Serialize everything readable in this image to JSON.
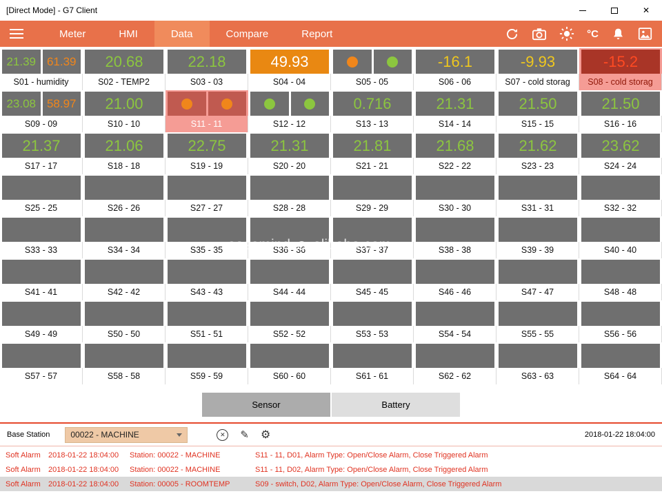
{
  "window": {
    "title": "[Direct Mode] - G7 Client",
    "controls": {
      "close_glyph": "✕"
    }
  },
  "nav": {
    "tabs": [
      {
        "label": "Meter",
        "active": false
      },
      {
        "label": "HMI",
        "active": false
      },
      {
        "label": "Data",
        "active": true
      },
      {
        "label": "Compare",
        "active": false
      },
      {
        "label": "Report",
        "active": false
      }
    ],
    "celsius": "°C",
    "icon_names": [
      "sync-icon",
      "camera-icon",
      "brightness-icon",
      "celsius-label",
      "alarm-bell-icon",
      "snapshot-icon"
    ]
  },
  "watermark": {
    "left": "easemind",
    "right": "alibaba.com"
  },
  "colors": {
    "navBg": "#E8714A",
    "navActive": "#F08B5C",
    "tileGray": "#6F6F6F",
    "green": "#8CC63F",
    "orange": "#F0861B",
    "yellow": "#EFC71E",
    "white": "#FFFFFF",
    "alarmValue": "#FF4A22",
    "orangeBox": "#E98812",
    "darkRedBox": "#A93527",
    "alarmCircleBox": "#C05A50",
    "alarmTileBg": "#F59C95",
    "accentRed": "#E5472B",
    "alarmText": "#E03322"
  },
  "grid": {
    "tiles": [
      {
        "label": "S01 - humidity",
        "type": "dual",
        "values": [
          "21.39",
          "61.39"
        ],
        "value_colors": [
          "green",
          "orange"
        ]
      },
      {
        "label": "S02 - TEMP2",
        "type": "single",
        "value": "20.68",
        "value_color": "green"
      },
      {
        "label": "S03 - 03",
        "type": "single",
        "value": "22.18",
        "value_color": "green"
      },
      {
        "label": "S04 - 04",
        "type": "single",
        "value": "49.93",
        "value_color": "white",
        "box_bg": "orangeBox"
      },
      {
        "label": "S05 - 05",
        "type": "circles",
        "circles": [
          "orange",
          "green"
        ]
      },
      {
        "label": "S06 - 06",
        "type": "single",
        "value": "-16.1",
        "value_color": "yellow"
      },
      {
        "label": "S07 - cold storag",
        "type": "single",
        "value": "-9.93",
        "value_color": "yellow"
      },
      {
        "label": "S08 - cold storag",
        "type": "single",
        "value": "-15.2",
        "value_color": "alarmValue",
        "box_bg": "darkRedBox",
        "alarm": true,
        "label_color": "#8F1607"
      },
      {
        "label": "S09 - 09",
        "type": "dual",
        "values": [
          "23.08",
          "58.97"
        ],
        "value_colors": [
          "green",
          "orange"
        ]
      },
      {
        "label": "S10 - 10",
        "type": "single",
        "value": "21.00",
        "value_color": "green"
      },
      {
        "label": "S11 - 11",
        "type": "circles",
        "circles": [
          "orange",
          "orange"
        ],
        "box_bg": "alarmCircleBox",
        "alarm": true,
        "label_color": "#FFFFFF"
      },
      {
        "label": "S12 - 12",
        "type": "circles",
        "circles": [
          "green",
          "green"
        ]
      },
      {
        "label": "S13 - 13",
        "type": "single",
        "value": "0.716",
        "value_color": "green"
      },
      {
        "label": "S14 - 14",
        "type": "single",
        "value": "21.31",
        "value_color": "green"
      },
      {
        "label": "S15 - 15",
        "type": "single",
        "value": "21.50",
        "value_color": "green"
      },
      {
        "label": "S16 - 16",
        "type": "single",
        "value": "21.50",
        "value_color": "green"
      },
      {
        "label": "S17 - 17",
        "type": "single",
        "value": "21.37",
        "value_color": "green"
      },
      {
        "label": "S18 - 18",
        "type": "single",
        "value": "21.06",
        "value_color": "green"
      },
      {
        "label": "S19 - 19",
        "type": "single",
        "value": "22.75",
        "value_color": "green"
      },
      {
        "label": "S20 - 20",
        "type": "single",
        "value": "21.31",
        "value_color": "green"
      },
      {
        "label": "S21 - 21",
        "type": "single",
        "value": "21.81",
        "value_color": "green"
      },
      {
        "label": "S22 - 22",
        "type": "single",
        "value": "21.68",
        "value_color": "green"
      },
      {
        "label": "S23 - 23",
        "type": "single",
        "value": "21.62",
        "value_color": "green"
      },
      {
        "label": "S24 - 24",
        "type": "single",
        "value": "23.62",
        "value_color": "green"
      },
      {
        "label": "S25 - 25",
        "type": "empty"
      },
      {
        "label": "S26 - 26",
        "type": "empty"
      },
      {
        "label": "S27 - 27",
        "type": "empty"
      },
      {
        "label": "S28 - 28",
        "type": "empty"
      },
      {
        "label": "S29 - 29",
        "type": "empty"
      },
      {
        "label": "S30 - 30",
        "type": "empty"
      },
      {
        "label": "S31 - 31",
        "type": "empty"
      },
      {
        "label": "S32 - 32",
        "type": "empty"
      },
      {
        "label": "S33 - 33",
        "type": "empty"
      },
      {
        "label": "S34 - 34",
        "type": "empty"
      },
      {
        "label": "S35 - 35",
        "type": "empty"
      },
      {
        "label": "S36 - 36",
        "type": "empty"
      },
      {
        "label": "S37 - 37",
        "type": "empty"
      },
      {
        "label": "S38 - 38",
        "type": "empty"
      },
      {
        "label": "S39 - 39",
        "type": "empty"
      },
      {
        "label": "S40 - 40",
        "type": "empty"
      },
      {
        "label": "S41 - 41",
        "type": "empty"
      },
      {
        "label": "S42 - 42",
        "type": "empty"
      },
      {
        "label": "S43 - 43",
        "type": "empty"
      },
      {
        "label": "S44 - 44",
        "type": "empty"
      },
      {
        "label": "S45 - 45",
        "type": "empty"
      },
      {
        "label": "S46 - 46",
        "type": "empty"
      },
      {
        "label": "S47 - 47",
        "type": "empty"
      },
      {
        "label": "S48 - 48",
        "type": "empty"
      },
      {
        "label": "S49 - 49",
        "type": "empty"
      },
      {
        "label": "S50 - 50",
        "type": "empty"
      },
      {
        "label": "S51 - 51",
        "type": "empty"
      },
      {
        "label": "S52 - 52",
        "type": "empty"
      },
      {
        "label": "S53 - 53",
        "type": "empty"
      },
      {
        "label": "S54 - 54",
        "type": "empty"
      },
      {
        "label": "S55 - 55",
        "type": "empty"
      },
      {
        "label": "S56 - 56",
        "type": "empty"
      },
      {
        "label": "S57 - 57",
        "type": "empty"
      },
      {
        "label": "S58 - 58",
        "type": "empty"
      },
      {
        "label": "S59 - 59",
        "type": "empty"
      },
      {
        "label": "S60 - 60",
        "type": "empty"
      },
      {
        "label": "S61 - 61",
        "type": "empty"
      },
      {
        "label": "S62 - 62",
        "type": "empty"
      },
      {
        "label": "S63 - 63",
        "type": "empty"
      },
      {
        "label": "S64 - 64",
        "type": "empty"
      }
    ]
  },
  "bottom_tabs": [
    {
      "label": "Sensor",
      "active": true
    },
    {
      "label": "Battery",
      "active": false
    }
  ],
  "base_station": {
    "label": "Base Station",
    "selected": "00022 - MACHINE",
    "icons": {
      "clear": "✕",
      "edit": "✎",
      "settings": "⚙"
    },
    "datetime": "2018-01-22 18:04:00"
  },
  "alarms": [
    {
      "type": "Soft Alarm",
      "time": "2018-01-22 18:04:00",
      "station": "Station: 00022 - MACHINE",
      "detail": "S11 - 11, D01, Alarm Type: Open/Close Alarm, Close Triggered Alarm",
      "selected": false
    },
    {
      "type": "Soft Alarm",
      "time": "2018-01-22 18:04:00",
      "station": "Station: 00022 - MACHINE",
      "detail": "S11 - 11, D02, Alarm Type: Open/Close Alarm, Close Triggered Alarm",
      "selected": false
    },
    {
      "type": "Soft Alarm",
      "time": "2018-01-22 18:04:00",
      "station": "Station: 00005 - ROOMTEMP",
      "detail": "S09 - switch, D02, Alarm Type: Open/Close Alarm, Close Triggered Alarm",
      "selected": true
    }
  ]
}
